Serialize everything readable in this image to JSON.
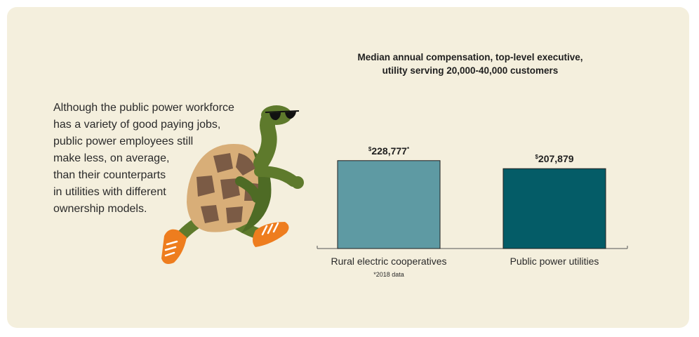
{
  "body_text": {
    "lines": [
      "Although the public power workforce",
      "has a variety of good paying jobs,",
      "public power employees still",
      "make less, on average,",
      "than their counterparts",
      "in utilities with different",
      "ownership models."
    ]
  },
  "colors": {
    "background": "#f4efdd",
    "bar_coop": "#5e9aa3",
    "bar_public": "#045c67",
    "turtle_skin": "#5e7a2c",
    "turtle_shell": "#d8ae78",
    "turtle_scutes": "#7b5b45",
    "shoes": "#ee7d1e"
  },
  "icons": {
    "illustration": "running-turtle-with-sunglasses-icon"
  },
  "chart_data": {
    "type": "bar",
    "title": "Median annual compensation, top-level executive, utility serving 20,000-40,000 customers",
    "title_lines": [
      "Median annual compensation, top-level executive,",
      "utility serving 20,000-40,000 customers"
    ],
    "categories": [
      "Rural electric cooperatives",
      "Public power utilities"
    ],
    "values": [
      228777,
      207879
    ],
    "value_labels": [
      {
        "prefix": "$",
        "text": "228,777",
        "suffix": "*"
      },
      {
        "prefix": "$",
        "text": "207,879",
        "suffix": ""
      }
    ],
    "footnote": "*2018 data",
    "xlabel": "",
    "ylabel": "",
    "grid": false
  }
}
